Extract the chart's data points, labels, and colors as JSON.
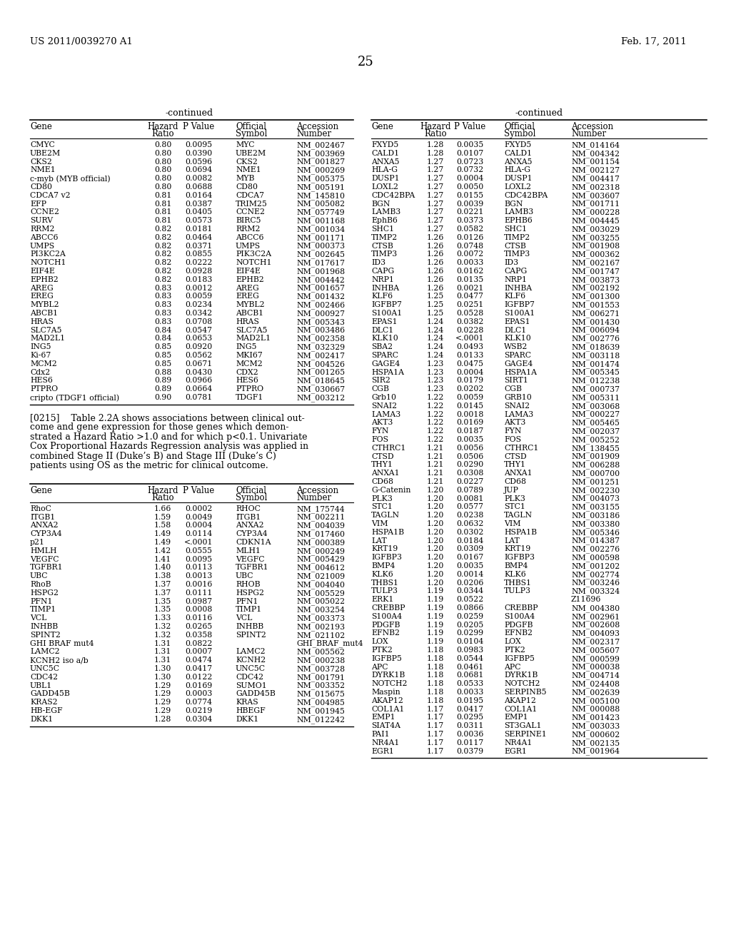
{
  "header_text": "US 2011/0039270 A1",
  "date_text": "Feb. 17, 2011",
  "page_number": "25",
  "bg_color": "#ffffff",
  "text_color": "#000000",
  "left_table": [
    [
      "CMYC",
      "0.80",
      "0.0095",
      "MYC",
      "NM_002467"
    ],
    [
      "UBE2M",
      "0.80",
      "0.0390",
      "UBE2M",
      "NM_003969"
    ],
    [
      "CKS2",
      "0.80",
      "0.0596",
      "CKS2",
      "NM_001827"
    ],
    [
      "NME1",
      "0.80",
      "0.0694",
      "NME1",
      "NM_000269"
    ],
    [
      "c-myb (MYB official)",
      "0.80",
      "0.0082",
      "MYB",
      "NM_005375"
    ],
    [
      "CD80",
      "0.80",
      "0.0688",
      "CD80",
      "NM_005191"
    ],
    [
      "CDCA7 v2",
      "0.81",
      "0.0164",
      "CDCA7",
      "NM_145810"
    ],
    [
      "EFP",
      "0.81",
      "0.0387",
      "TRIM25",
      "NM_005082"
    ],
    [
      "CCNE2",
      "0.81",
      "0.0405",
      "CCNE2",
      "NM_057749"
    ],
    [
      "SURV",
      "0.81",
      "0.0573",
      "BIRC5",
      "NM_001168"
    ],
    [
      "RRM2",
      "0.82",
      "0.0181",
      "RRM2",
      "NM_001034"
    ],
    [
      "ABCC6",
      "0.82",
      "0.0464",
      "ABCC6",
      "NM_001171"
    ],
    [
      "UMPS",
      "0.82",
      "0.0371",
      "UMPS",
      "NM_000373"
    ],
    [
      "PI3KC2A",
      "0.82",
      "0.0855",
      "PIK3C2A",
      "NM_002645"
    ],
    [
      "NOTCH1",
      "0.82",
      "0.0222",
      "NOTCH1",
      "NM_017617"
    ],
    [
      "EIF4E",
      "0.82",
      "0.0928",
      "EIF4E",
      "NM_001968"
    ],
    [
      "EPHB2",
      "0.82",
      "0.0183",
      "EPHB2",
      "NM_004442"
    ],
    [
      "AREG",
      "0.83",
      "0.0012",
      "AREG",
      "NM_001657"
    ],
    [
      "EREG",
      "0.83",
      "0.0059",
      "EREG",
      "NM_001432"
    ],
    [
      "MYBL2",
      "0.83",
      "0.0234",
      "MYBL2",
      "NM_002466"
    ],
    [
      "ABCB1",
      "0.83",
      "0.0342",
      "ABCB1",
      "NM_000927"
    ],
    [
      "HRAS",
      "0.83",
      "0.0708",
      "HRAS",
      "NM_005343"
    ],
    [
      "SLC7A5",
      "0.84",
      "0.0547",
      "SLC7A5",
      "NM_003486"
    ],
    [
      "MAD2L1",
      "0.84",
      "0.0653",
      "MAD2L1",
      "NM_002358"
    ],
    [
      "ING5",
      "0.85",
      "0.0920",
      "ING5",
      "NM_032329"
    ],
    [
      "Ki-67",
      "0.85",
      "0.0562",
      "MKI67",
      "NM_002417"
    ],
    [
      "MCM2",
      "0.85",
      "0.0671",
      "MCM2",
      "NM_004526"
    ],
    [
      "Cdx2",
      "0.88",
      "0.0430",
      "CDX2",
      "NM_001265"
    ],
    [
      "HES6",
      "0.89",
      "0.0966",
      "HES6",
      "NM_018645"
    ],
    [
      "PTPRO",
      "0.89",
      "0.0664",
      "PTPRO",
      "NM_030667"
    ],
    [
      "cripto (TDGF1 official)",
      "0.90",
      "0.0781",
      "TDGF1",
      "NM_003212"
    ]
  ],
  "para_lines": [
    "[0215]    Table 2.2A shows associations between clinical out-",
    "come and gene expression for those genes which demon-",
    "strated a Hazard Ratio >1.0 and for which p<0.1. Univariate",
    "Cox Proportional Hazards Regression analysis was applied in",
    "combined Stage II (Duke’s B) and Stage III (Duke’s C)",
    "patients using OS as the metric for clinical outcome."
  ],
  "bottom_left_table": [
    [
      "RhoC",
      "1.66",
      "0.0002",
      "RHOC",
      "NM_175744"
    ],
    [
      "ITGB1",
      "1.59",
      "0.0049",
      "ITGB1",
      "NM_002211"
    ],
    [
      "ANXA2",
      "1.58",
      "0.0004",
      "ANXA2",
      "NM_004039"
    ],
    [
      "CYP3A4",
      "1.49",
      "0.0114",
      "CYP3A4",
      "NM_017460"
    ],
    [
      "p21",
      "1.49",
      "<.0001",
      "CDKN1A",
      "NM_000389"
    ],
    [
      "HMLH",
      "1.42",
      "0.0555",
      "MLH1",
      "NM_000249"
    ],
    [
      "VEGFC",
      "1.41",
      "0.0095",
      "VEGFC",
      "NM_005429"
    ],
    [
      "TGFBR1",
      "1.40",
      "0.0113",
      "TGFBR1",
      "NM_004612"
    ],
    [
      "UBC",
      "1.38",
      "0.0013",
      "UBC",
      "NM_021009"
    ],
    [
      "RhoB",
      "1.37",
      "0.0016",
      "RHOB",
      "NM_004040"
    ],
    [
      "HSPG2",
      "1.37",
      "0.0111",
      "HSPG2",
      "NM_005529"
    ],
    [
      "PFN1",
      "1.35",
      "0.0987",
      "PFN1",
      "NM_005022"
    ],
    [
      "TIMP1",
      "1.35",
      "0.0008",
      "TIMP1",
      "NM_003254"
    ],
    [
      "VCL",
      "1.33",
      "0.0116",
      "VCL",
      "NM_003373"
    ],
    [
      "INHBB",
      "1.32",
      "0.0265",
      "INHBB",
      "NM_002193"
    ],
    [
      "SPINT2",
      "1.32",
      "0.0358",
      "SPINT2",
      "NM_021102"
    ],
    [
      "GHI BRAF mut4",
      "1.31",
      "0.0822",
      "",
      "GHI_BRAF_mut4"
    ],
    [
      "LAMC2",
      "1.31",
      "0.0007",
      "LAMC2",
      "NM_005562"
    ],
    [
      "KCNH2 iso a/b",
      "1.31",
      "0.0474",
      "KCNH2",
      "NM_000238"
    ],
    [
      "UNC5C",
      "1.30",
      "0.0417",
      "UNC5C",
      "NM_003728"
    ],
    [
      "CDC42",
      "1.30",
      "0.0122",
      "CDC42",
      "NM_001791"
    ],
    [
      "UBL1",
      "1.29",
      "0.0169",
      "SUMO1",
      "NM_003352"
    ],
    [
      "GADD45B",
      "1.29",
      "0.0003",
      "GADD45B",
      "NM_015675"
    ],
    [
      "KRAS2",
      "1.29",
      "0.0774",
      "KRAS",
      "NM_004985"
    ],
    [
      "HB-EGF",
      "1.29",
      "0.0219",
      "HBEGF",
      "NM_001945"
    ],
    [
      "DKK1",
      "1.28",
      "0.0304",
      "DKK1",
      "NM_012242"
    ]
  ],
  "right_table": [
    [
      "FXYD5",
      "1.28",
      "0.0035",
      "FXYD5",
      "NM_014164"
    ],
    [
      "CALD1",
      "1.28",
      "0.0107",
      "CALD1",
      "NM_004342"
    ],
    [
      "ANXA5",
      "1.27",
      "0.0723",
      "ANXA5",
      "NM_001154"
    ],
    [
      "HLA-G",
      "1.27",
      "0.0732",
      "HLA-G",
      "NM_002127"
    ],
    [
      "DUSP1",
      "1.27",
      "0.0004",
      "DUSP1",
      "NM_004417"
    ],
    [
      "LOXL2",
      "1.27",
      "0.0050",
      "LOXL2",
      "NM_002318"
    ],
    [
      "CDC42BPA",
      "1.27",
      "0.0155",
      "CDC42BPA",
      "NM_003607"
    ],
    [
      "BGN",
      "1.27",
      "0.0039",
      "BGN",
      "NM_001711"
    ],
    [
      "LAMB3",
      "1.27",
      "0.0221",
      "LAMB3",
      "NM_000228"
    ],
    [
      "EphB6",
      "1.27",
      "0.0373",
      "EPHB6",
      "NM_004445"
    ],
    [
      "SHC1",
      "1.27",
      "0.0582",
      "SHC1",
      "NM_003029"
    ],
    [
      "TIMP2",
      "1.26",
      "0.0126",
      "TIMP2",
      "NM_003255"
    ],
    [
      "CTSB",
      "1.26",
      "0.0748",
      "CTSB",
      "NM_001908"
    ],
    [
      "TIMP3",
      "1.26",
      "0.0072",
      "TIMP3",
      "NM_000362"
    ],
    [
      "ID3",
      "1.26",
      "0.0033",
      "ID3",
      "NM_002167"
    ],
    [
      "CAPG",
      "1.26",
      "0.0162",
      "CAPG",
      "NM_001747"
    ],
    [
      "NRP1",
      "1.26",
      "0.0135",
      "NRP1",
      "NM_003873"
    ],
    [
      "INHBA",
      "1.26",
      "0.0021",
      "INHBA",
      "NM_002192"
    ],
    [
      "KLF6",
      "1.25",
      "0.0477",
      "KLF6",
      "NM_001300"
    ],
    [
      "IGFBP7",
      "1.25",
      "0.0251",
      "IGFBP7",
      "NM_001553"
    ],
    [
      "S100A1",
      "1.25",
      "0.0528",
      "S100A1",
      "NM_006271"
    ],
    [
      "EPAS1",
      "1.24",
      "0.0382",
      "EPAS1",
      "NM_001430"
    ],
    [
      "DLC1",
      "1.24",
      "0.0228",
      "DLC1",
      "NM_006094"
    ],
    [
      "KLK10",
      "1.24",
      "<.0001",
      "KLK10",
      "NM_002776"
    ],
    [
      "SBA2",
      "1.24",
      "0.0493",
      "WSB2",
      "NM_018639"
    ],
    [
      "SPARC",
      "1.24",
      "0.0133",
      "SPARC",
      "NM_003118"
    ],
    [
      "GAGE4",
      "1.23",
      "0.0475",
      "GAGE4",
      "NM_001474"
    ],
    [
      "HSPA1A",
      "1.23",
      "0.0004",
      "HSPA1A",
      "NM_005345"
    ],
    [
      "SIR2",
      "1.23",
      "0.0179",
      "SIRT1",
      "NM_012238"
    ],
    [
      "CGB",
      "1.23",
      "0.0202",
      "CGB",
      "NM_000737"
    ],
    [
      "Grb10",
      "1.22",
      "0.0059",
      "GRB10",
      "NM_005311"
    ],
    [
      "SNAI2",
      "1.22",
      "0.0145",
      "SNAI2",
      "NM_003068"
    ],
    [
      "LAMA3",
      "1.22",
      "0.0018",
      "LAMA3",
      "NM_000227"
    ],
    [
      "AKT3",
      "1.22",
      "0.0169",
      "AKT3",
      "NM_005465"
    ],
    [
      "FYN",
      "1.22",
      "0.0187",
      "FYN",
      "NM_002037"
    ],
    [
      "FOS",
      "1.22",
      "0.0035",
      "FOS",
      "NM_005252"
    ],
    [
      "CTHRC1",
      "1.21",
      "0.0056",
      "CTHRC1",
      "NM_138455"
    ],
    [
      "CTSD",
      "1.21",
      "0.0506",
      "CTSD",
      "NM_001909"
    ],
    [
      "THY1",
      "1.21",
      "0.0290",
      "THY1",
      "NM_006288"
    ],
    [
      "ANXA1",
      "1.21",
      "0.0308",
      "ANXA1",
      "NM_000700"
    ],
    [
      "CD68",
      "1.21",
      "0.0227",
      "CD68",
      "NM_001251"
    ],
    [
      "G-Catenin",
      "1.20",
      "0.0789",
      "JUP",
      "NM_002230"
    ],
    [
      "PLK3",
      "1.20",
      "0.0081",
      "PLK3",
      "NM_004073"
    ],
    [
      "STC1",
      "1.20",
      "0.0577",
      "STC1",
      "NM_003155"
    ],
    [
      "TAGLN",
      "1.20",
      "0.0238",
      "TAGLN",
      "NM_003186"
    ],
    [
      "VIM",
      "1.20",
      "0.0632",
      "VIM",
      "NM_003380"
    ],
    [
      "HSPA1B",
      "1.20",
      "0.0302",
      "HSPA1B",
      "NM_005346"
    ],
    [
      "LAT",
      "1.20",
      "0.0184",
      "LAT",
      "NM_014387"
    ],
    [
      "KRT19",
      "1.20",
      "0.0309",
      "KRT19",
      "NM_002276"
    ],
    [
      "IGFBP3",
      "1.20",
      "0.0167",
      "IGFBP3",
      "NM_000598"
    ],
    [
      "BMP4",
      "1.20",
      "0.0035",
      "BMP4",
      "NM_001202"
    ],
    [
      "KLK6",
      "1.20",
      "0.0014",
      "KLK6",
      "NM_002774"
    ],
    [
      "THBS1",
      "1.20",
      "0.0206",
      "THBS1",
      "NM_003246"
    ],
    [
      "TULP3",
      "1.19",
      "0.0344",
      "TULP3",
      "NM_003324"
    ],
    [
      "ERK1",
      "1.19",
      "0.0522",
      "",
      "Z11696"
    ],
    [
      "CREBBP",
      "1.19",
      "0.0866",
      "CREBBP",
      "NM_004380"
    ],
    [
      "S100A4",
      "1.19",
      "0.0259",
      "S100A4",
      "NM_002961"
    ],
    [
      "PDGFB",
      "1.19",
      "0.0205",
      "PDGFB",
      "NM_002608"
    ],
    [
      "EFNB2",
      "1.19",
      "0.0299",
      "EFNB2",
      "NM_004093"
    ],
    [
      "LOX",
      "1.19",
      "0.0104",
      "LOX",
      "NM_002317"
    ],
    [
      "PTK2",
      "1.18",
      "0.0983",
      "PTK2",
      "NM_005607"
    ],
    [
      "IGFBP5",
      "1.18",
      "0.0544",
      "IGFBP5",
      "NM_000599"
    ],
    [
      "APC",
      "1.18",
      "0.0461",
      "APC",
      "NM_000038"
    ],
    [
      "DYRK1B",
      "1.18",
      "0.0681",
      "DYRK1B",
      "NM_004714"
    ],
    [
      "NOTCH2",
      "1.18",
      "0.0533",
      "NOTCH2",
      "NM_024408"
    ],
    [
      "Maspin",
      "1.18",
      "0.0033",
      "SERPINB5",
      "NM_002639"
    ],
    [
      "AKAP12",
      "1.18",
      "0.0195",
      "AKAP12",
      "NM_005100"
    ],
    [
      "COL1A1",
      "1.17",
      "0.0417",
      "COL1A1",
      "NM_000088"
    ],
    [
      "EMP1",
      "1.17",
      "0.0295",
      "EMP1",
      "NM_001423"
    ],
    [
      "SIAT4A",
      "1.17",
      "0.0311",
      "ST3GAL1",
      "NM_003033"
    ],
    [
      "PAI1",
      "1.17",
      "0.0036",
      "SERPINE1",
      "NM_000602"
    ],
    [
      "NR4A1",
      "1.17",
      "0.0117",
      "NR4A1",
      "NM_002135"
    ],
    [
      "EGR1",
      "1.17",
      "0.0379",
      "EGR1",
      "NM_001964"
    ]
  ]
}
